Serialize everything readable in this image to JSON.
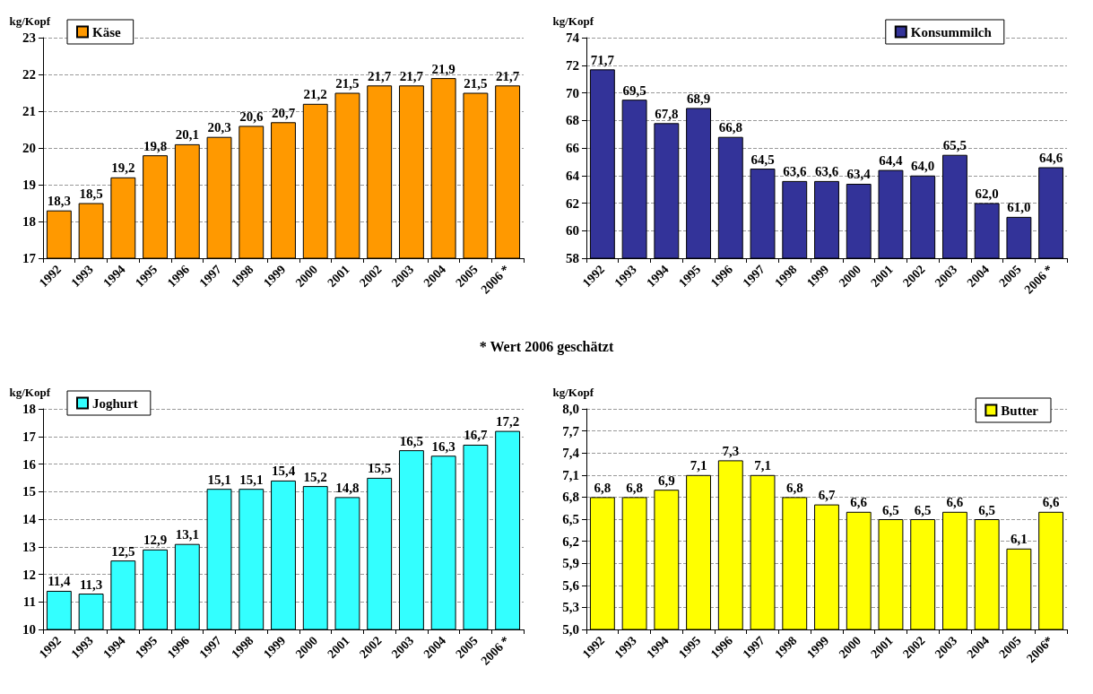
{
  "chart_data": [
    {
      "type": "bar",
      "ylabel": "kg/Kopf",
      "categories": [
        "1992",
        "1993",
        "1994",
        "1995",
        "1996",
        "1997",
        "1998",
        "1999",
        "2000",
        "2001",
        "2002",
        "2003",
        "2004",
        "2005",
        "2006 *"
      ],
      "series": [
        {
          "name": "Käse",
          "color": "#ff9900",
          "values": [
            18.3,
            18.5,
            19.2,
            19.8,
            20.1,
            20.3,
            20.6,
            20.7,
            21.2,
            21.5,
            21.7,
            21.7,
            21.9,
            21.5,
            21.7
          ],
          "value_labels": [
            "18,3",
            "18,5",
            "19,2",
            "19,8",
            "20,1",
            "20,3",
            "20,6",
            "20,7",
            "21,2",
            "21,5",
            "21,7",
            "21,7",
            "21,9",
            "21,5",
            "21,7"
          ]
        }
      ],
      "ylim": [
        17,
        23
      ],
      "yticks": [
        17,
        18,
        19,
        20,
        21,
        22,
        23
      ],
      "grid": "y",
      "legend": "top left",
      "annotations": [
        "* Wert 2006 geschätzt"
      ]
    },
    {
      "type": "bar",
      "ylabel": "kg/Kopf",
      "categories": [
        "1992",
        "1993",
        "1994",
        "1995",
        "1996",
        "1997",
        "1998",
        "1999",
        "2000",
        "2001",
        "2002",
        "2003",
        "2004",
        "2005",
        "2006 *"
      ],
      "series": [
        {
          "name": "Konsummilch",
          "color": "#333399",
          "values": [
            71.7,
            69.5,
            67.8,
            68.9,
            66.8,
            64.5,
            63.6,
            63.6,
            63.4,
            64.4,
            64.0,
            65.5,
            62.0,
            61.0,
            64.6
          ],
          "value_labels": [
            "71,7",
            "69,5",
            "67,8",
            "68,9",
            "66,8",
            "64,5",
            "63,6",
            "63,6",
            "63,4",
            "64,4",
            "64,0",
            "65,5",
            "62,0",
            "61,0",
            "64,6"
          ]
        }
      ],
      "ylim": [
        58,
        74
      ],
      "yticks": [
        58,
        60,
        62,
        64,
        66,
        68,
        70,
        72,
        74
      ],
      "grid": "y",
      "legend": "top"
    },
    {
      "type": "bar",
      "ylabel": "kg/Kopf",
      "categories": [
        "1992",
        "1993",
        "1994",
        "1995",
        "1996",
        "1997",
        "1998",
        "1999",
        "2000",
        "2001",
        "2002",
        "2003",
        "2004",
        "2005",
        "2006 *"
      ],
      "series": [
        {
          "name": "Joghurt",
          "color": "#33ffff",
          "values": [
            11.4,
            11.3,
            12.5,
            12.9,
            13.1,
            15.1,
            15.1,
            15.4,
            15.2,
            14.8,
            15.5,
            16.5,
            16.3,
            16.7,
            17.2
          ],
          "value_labels": [
            "11,4",
            "11,3",
            "12,5",
            "12,9",
            "13,1",
            "15,1",
            "15,1",
            "15,4",
            "15,2",
            "14,8",
            "15,5",
            "16,5",
            "16,3",
            "16,7",
            "17,2"
          ]
        }
      ],
      "ylim": [
        10,
        18
      ],
      "yticks": [
        10,
        11,
        12,
        13,
        14,
        15,
        16,
        17,
        18
      ],
      "grid": "y",
      "legend": "top left"
    },
    {
      "type": "bar",
      "ylabel": "kg/Kopf",
      "categories": [
        "1992",
        "1993",
        "1994",
        "1995",
        "1996",
        "1997",
        "1998",
        "1999",
        "2000",
        "2001",
        "2002",
        "2003",
        "2004",
        "2005",
        "2006*"
      ],
      "series": [
        {
          "name": "Butter",
          "color": "#ffff00",
          "values": [
            6.8,
            6.8,
            6.9,
            7.1,
            7.3,
            7.1,
            6.8,
            6.7,
            6.6,
            6.5,
            6.5,
            6.6,
            6.5,
            6.1,
            6.6
          ],
          "value_labels": [
            "6,8",
            "6,8",
            "6,9",
            "7,1",
            "7,3",
            "7,1",
            "6,8",
            "6,7",
            "6,6",
            "6,5",
            "6,5",
            "6,6",
            "6,5",
            "6,1",
            "6,6"
          ]
        }
      ],
      "ylim": [
        5,
        8
      ],
      "yticks": [
        {
          "value": 5,
          "label": "5,0"
        },
        {
          "value": 5.3,
          "label": "5,3"
        },
        {
          "value": 5.6,
          "label": "5,6"
        },
        {
          "value": 5.9,
          "label": "5,9"
        },
        {
          "value": 6.2,
          "label": "6,2"
        },
        {
          "value": 6.5,
          "label": "6,5"
        },
        {
          "value": 6.8,
          "label": "6,8"
        },
        {
          "value": 7.1,
          "label": "7,1"
        },
        {
          "value": 7.4,
          "label": "7,4"
        },
        {
          "value": 7.7,
          "label": "7,7"
        },
        {
          "value": 8,
          "label": "8,0"
        }
      ],
      "grid": "y",
      "legend": "top right"
    }
  ]
}
